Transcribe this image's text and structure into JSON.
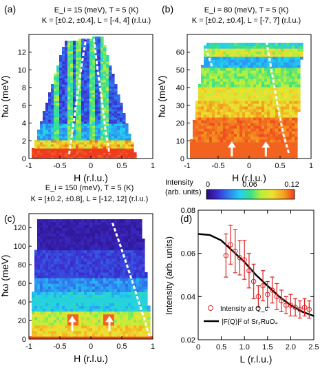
{
  "colors": {
    "colormap": [
      "#2a0a6e",
      "#3b2ccf",
      "#2f7df0",
      "#22d0f0",
      "#38e08a",
      "#b8f03a",
      "#f0e030",
      "#f4a020",
      "#f03a20"
    ],
    "bg_dark": "#1b1040",
    "fit_line": "#000000",
    "data_points": "#e02020",
    "dispersion": "#ffffff"
  },
  "chart_data": [
    {
      "id": "a",
      "type": "heatmap",
      "panel_label": "(a)",
      "title_line1": "E_i = 15 (meV), T = 5 (K)",
      "title_line2": "K = [±0.2, ±0.4], L = [-4, 4] (r.l.u.)",
      "xlabel": "H (r.l.u.)",
      "ylabel": "ħω (meV)",
      "xlim": [
        -1,
        1
      ],
      "ylim": [
        0,
        14
      ],
      "xticks": [
        -1,
        -0.5,
        0,
        0.5,
        1
      ],
      "xtick_labels": [
        "-1",
        "-0.5",
        "0",
        "0.5",
        "1"
      ],
      "yticks": [
        0,
        2,
        4,
        6,
        8,
        10,
        12
      ],
      "ytick_labels": [
        "0",
        "2",
        "4",
        "6",
        "8",
        "10",
        "12"
      ],
      "coverage": {
        "x_left_low": -0.98,
        "x_right_low": 0.74,
        "top_left": [
          -0.42,
          13.2
        ],
        "top_right": [
          0.18,
          13.8
        ]
      },
      "dispersion": [
        {
          "points": [
            [
              -0.35,
              0.5
            ],
            [
              -0.3,
              3
            ],
            [
              -0.22,
              7
            ],
            [
              -0.15,
              10.5
            ],
            [
              -0.08,
              13.5
            ]
          ]
        },
        {
          "points": [
            [
              0.05,
              13.5
            ],
            [
              0.1,
              10.5
            ],
            [
              0.17,
              7
            ],
            [
              0.24,
              3
            ],
            [
              0.3,
              0.5
            ]
          ]
        }
      ],
      "arrows": []
    },
    {
      "id": "b",
      "type": "heatmap",
      "panel_label": "(b)",
      "title_line1": "E_i = 80 (meV), T = 5 (K)",
      "title_line2": "K = [±0.2, ±0.4], L = [-7, 7] (r.l.u.)",
      "xlabel": "H (r.l.u.)",
      "ylabel": "ħω (meV)",
      "xlim": [
        -1,
        1
      ],
      "ylim": [
        0,
        70
      ],
      "xticks": [
        -1,
        -0.5,
        0,
        0.5,
        1
      ],
      "xtick_labels": [
        "-1",
        "-0.5",
        "0",
        "0.5",
        "1"
      ],
      "yticks": [
        0,
        10,
        20,
        30,
        40,
        50,
        60
      ],
      "ytick_labels": [
        "0",
        "10",
        "20",
        "30",
        "40",
        "50",
        "60"
      ],
      "coverage": {
        "x_left_low": -0.98,
        "x_right_low": 0.76,
        "top_left": [
          -0.7,
          66
        ],
        "top_right": [
          0.86,
          66
        ]
      },
      "dispersion": [
        {
          "points": [
            [
              -0.6,
              52
            ],
            [
              -0.7,
              62
            ]
          ]
        },
        {
          "points": [
            [
              0.28,
              66
            ],
            [
              0.36,
              50
            ],
            [
              0.45,
              32
            ],
            [
              0.55,
              14
            ],
            [
              0.65,
              2
            ]
          ]
        }
      ],
      "arrows": [
        [
          -0.28,
          5
        ],
        [
          0.27,
          5
        ]
      ]
    },
    {
      "id": "c",
      "type": "heatmap",
      "panel_label": "(c)",
      "title_line1": "E_i = 150 (meV), T = 5 (K)",
      "title_line2": "K = [±0.2, ±0.8], L = [-12, 12] (r.l.u.)",
      "xlabel": "H (r.l.u.)",
      "ylabel": "ħω (meV)",
      "xlim": [
        -1,
        1
      ],
      "ylim": [
        0,
        135
      ],
      "xticks": [
        -1,
        -0.5,
        0,
        0.5,
        1
      ],
      "xtick_labels": [
        "-1",
        "-0.5",
        "0",
        "0.5",
        "1"
      ],
      "yticks": [
        0,
        20,
        40,
        60,
        80,
        100,
        120
      ],
      "ytick_labels": [
        "0",
        "20",
        "40",
        "60",
        "80",
        "100",
        "120"
      ],
      "coverage": {
        "x_left_low": -0.98,
        "x_right_low": 0.98,
        "top_left": [
          -0.86,
          128
        ],
        "top_right": [
          0.82,
          128
        ]
      },
      "dispersion": [
        {
          "points": [
            [
              0.35,
              125
            ],
            [
              0.48,
              100
            ],
            [
              0.62,
              72
            ],
            [
              0.75,
              45
            ],
            [
              0.88,
              18
            ],
            [
              0.95,
              2
            ]
          ]
        }
      ],
      "arrows": [
        [
          -0.3,
          16
        ],
        [
          0.3,
          16
        ]
      ]
    },
    {
      "id": "d",
      "type": "scatter",
      "panel_label": "(d)",
      "xlabel": "L (r.l.u.)",
      "ylabel": "Intensity (arb. units)",
      "xlim": [
        0,
        2.5
      ],
      "ylim": [
        0.02,
        0.08
      ],
      "xticks": [
        0,
        0.5,
        1,
        1.5,
        2,
        2.5
      ],
      "xtick_labels": [
        "0",
        "0.5",
        "1.0",
        "1.5",
        "2.0",
        "2.5"
      ],
      "yticks": [
        0.02,
        0.04,
        0.06,
        0.08
      ],
      "ytick_labels": [
        "0.02",
        "0.04",
        "0.06",
        "0.08"
      ],
      "series": [
        {
          "name": "Intensity at Q_c",
          "kind": "points",
          "x": [
            0.6,
            0.7,
            0.8,
            0.9,
            1.0,
            1.1,
            1.2,
            1.3,
            1.4,
            1.5,
            1.6,
            1.7,
            1.8,
            1.9,
            2.0,
            2.1,
            2.2,
            2.3,
            2.4
          ],
          "y": [
            0.059,
            0.064,
            0.061,
            0.058,
            0.057,
            0.052,
            0.047,
            0.04,
            0.045,
            0.041,
            0.043,
            0.04,
            0.038,
            0.036,
            0.036,
            0.035,
            0.034,
            0.035,
            0.034
          ],
          "err": [
            0.01,
            0.009,
            0.01,
            0.008,
            0.009,
            0.008,
            0.008,
            0.005,
            0.007,
            0.006,
            0.006,
            0.006,
            0.005,
            0.004,
            0.005,
            0.004,
            0.004,
            0.004,
            0.004
          ]
        },
        {
          "name": "|F(Q)|² of Sr₂RuO₄",
          "kind": "line",
          "x": [
            0.0,
            0.25,
            0.5,
            0.75,
            1.0,
            1.25,
            1.5,
            1.75,
            2.0,
            2.25,
            2.5
          ],
          "y": [
            0.069,
            0.0685,
            0.066,
            0.061,
            0.056,
            0.05,
            0.045,
            0.04,
            0.036,
            0.033,
            0.031
          ]
        }
      ],
      "legend_position": "bottom-left"
    }
  ],
  "colorbar": {
    "label_line1": "Intensity",
    "label_line2": "(arb. units)",
    "ticks": [
      "0",
      "0.06",
      "0.12"
    ]
  }
}
